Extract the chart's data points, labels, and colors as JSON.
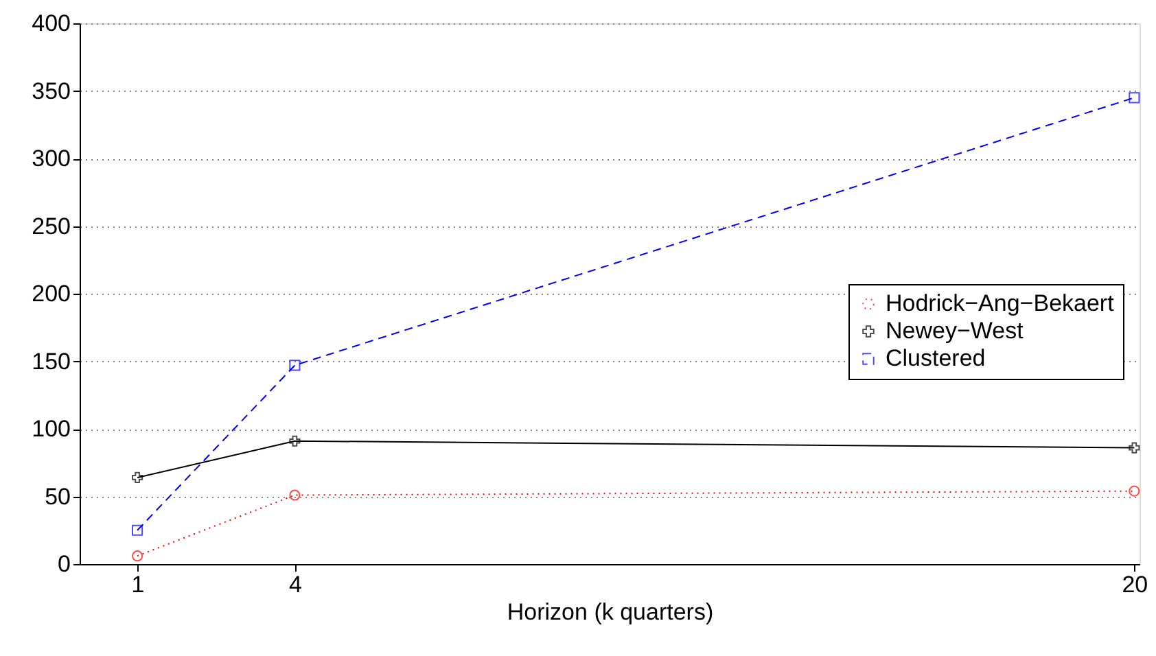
{
  "chart_data": {
    "type": "line",
    "xlabel": "Horizon (k quarters)",
    "x": [
      1,
      4,
      20
    ],
    "series": [
      {
        "name": "Hodrick−Ang−Bekaert",
        "color": "#ff0000",
        "values": [
          6,
          51,
          54
        ],
        "marker": "circle",
        "line_style": "dotted"
      },
      {
        "name": "Newey−West",
        "color": "#000000",
        "values": [
          64,
          91,
          86
        ],
        "marker": "cross",
        "line_style": "solid"
      },
      {
        "name": "Clustered",
        "color": "#0000ff",
        "values": [
          25,
          147,
          345
        ],
        "marker": "square",
        "line_style": "dashed"
      }
    ],
    "xlim": [
      -0.1,
      20.1
    ],
    "xticks": [
      1,
      4,
      20
    ],
    "ylim": [
      0,
      400
    ],
    "yticks": [
      0,
      50,
      100,
      150,
      200,
      250,
      300,
      350,
      400
    ],
    "grid": "y",
    "legend": "right"
  }
}
